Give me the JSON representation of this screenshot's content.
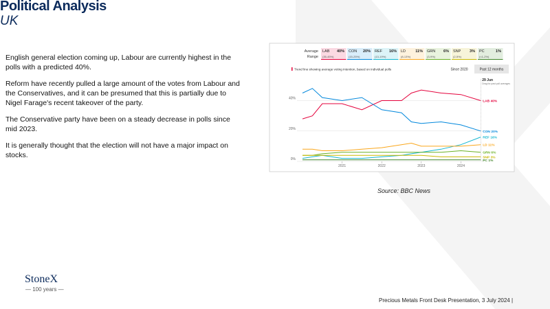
{
  "header": {
    "title": "Political Analysis",
    "subtitle": "UK"
  },
  "paragraphs": [
    "English general election coming up, Labour are currently highest in the polls with a predicted 40%.",
    "Reform have recently pulled  a large amount of the votes from Labour and the Conservatives,  and it can be presumed that this is partially due to Nigel Farage's recent takeover of the party.",
    "The Conservative party have been on a steady decrease in polls since mid 2023.",
    "It is generally thought that the election will not have a major impact on stocks."
  ],
  "source": "Source: BBC News",
  "logo": {
    "name": "StoneX",
    "tagline": "— 100 years —"
  },
  "footer": "Precious Metals Front Desk Presentation, 3 July 2024 |",
  "chart_data": {
    "type": "line",
    "row_labels": [
      "Average",
      "Range"
    ],
    "legend_text": "Trend line showing average voting intention, based on individual polls",
    "buttons": [
      "Since 2020",
      "Past 12 months"
    ],
    "date_label": "29 Jun",
    "date_note": "Drag for past poll averages",
    "x": [
      2020.0,
      2020.25,
      2020.5,
      2021.0,
      2021.5,
      2022.0,
      2022.5,
      2022.75,
      2023.0,
      2023.5,
      2024.0,
      2024.5
    ],
    "xlim": [
      2020.0,
      2024.6
    ],
    "xticks": [
      2021,
      2022,
      2023,
      2024
    ],
    "ylim": [
      0,
      52
    ],
    "yticks": [
      {
        "value": 0,
        "label": "0%"
      },
      {
        "value": 20,
        "label": "20%"
      },
      {
        "value": 40,
        "label": "40%"
      }
    ],
    "grid": true,
    "series": [
      {
        "name": "LAB",
        "color": "#e4003b",
        "average": 40,
        "average_label": "40%",
        "range_label": "(35-45%)",
        "values": [
          28,
          30,
          38,
          38,
          34,
          40,
          40,
          45,
          47,
          45,
          44,
          40
        ]
      },
      {
        "name": "CON",
        "color": "#0087dc",
        "average": 20,
        "average_label": "20%",
        "range_label": "(15-25%)",
        "values": [
          45,
          48,
          42,
          40,
          42,
          34,
          32,
          26,
          25,
          26,
          24,
          20
        ]
      },
      {
        "name": "REF",
        "color": "#12b6cf",
        "average": 16,
        "average_label": "16%",
        "range_label": "(13-19%)",
        "values": [
          2,
          3,
          4,
          2,
          2,
          3,
          4,
          5,
          6,
          8,
          11,
          16
        ]
      },
      {
        "name": "LD",
        "color": "#faa61a",
        "average": 11,
        "average_label": "11%",
        "range_label": "(8-13%)",
        "values": [
          8,
          8,
          7,
          7,
          8,
          9,
          11,
          12,
          10,
          10,
          10,
          11
        ]
      },
      {
        "name": "GRN",
        "color": "#6ab023",
        "average": 6,
        "average_label": "6%",
        "range_label": "(3-9%)",
        "values": [
          4,
          4,
          5,
          6,
          6,
          6,
          6,
          6,
          6,
          6,
          7,
          6
        ]
      },
      {
        "name": "SNP",
        "color": "#c9b800",
        "average": 3,
        "average_label": "3%",
        "range_label": "(2-5%)",
        "values": [
          4,
          4,
          4,
          4,
          4,
          4,
          4,
          4,
          4,
          3,
          3,
          3
        ]
      },
      {
        "name": "PC",
        "color": "#3f8428",
        "average": 1,
        "average_label": "1%",
        "range_label": "(<1-2%)",
        "values": [
          1,
          1,
          1,
          1,
          1,
          1,
          1,
          1,
          1,
          1,
          1,
          1
        ]
      }
    ]
  }
}
